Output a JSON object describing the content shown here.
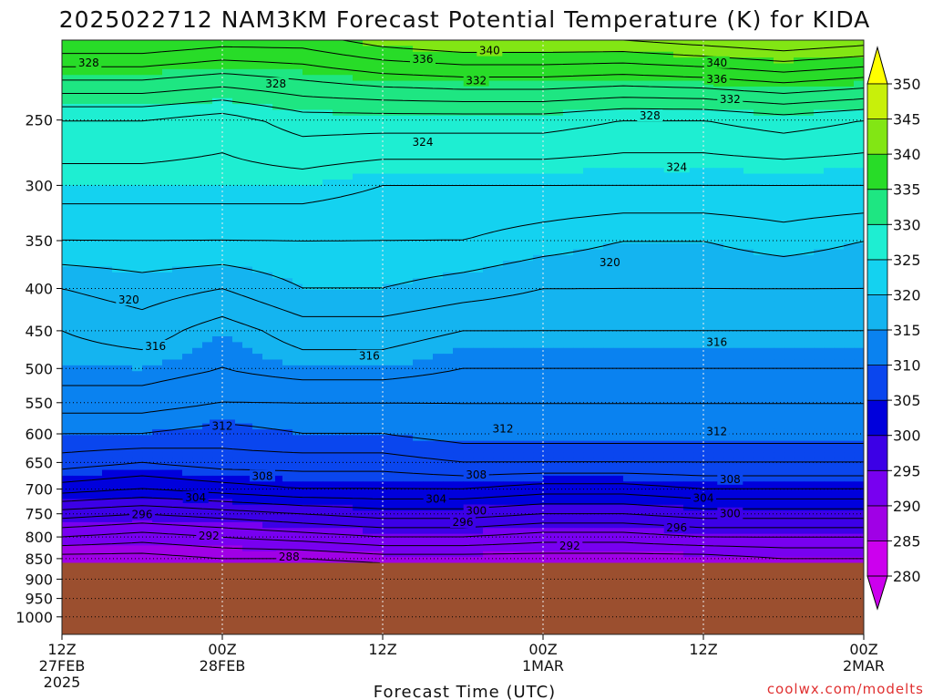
{
  "chart_data": {
    "type": "heatmap",
    "title": "2025022712 NAM3KM Forecast Potential Temperature (K) for KIDA",
    "xlabel": "Forecast Time (UTC)",
    "ylabel": "",
    "y_scale": "log-pressure (inverted)",
    "y_ticks": [
      250,
      300,
      350,
      400,
      450,
      500,
      550,
      600,
      650,
      700,
      750,
      800,
      850,
      900,
      950,
      1000
    ],
    "ylim": [
      1050,
      200
    ],
    "x_ticks": [
      {
        "hours": 0,
        "label": "12Z",
        "sub": "27FEB",
        "sub2": "2025"
      },
      {
        "hours": 12,
        "label": "00Z",
        "sub": "28FEB",
        "sub2": ""
      },
      {
        "hours": 24,
        "label": "12Z",
        "sub": "",
        "sub2": ""
      },
      {
        "hours": 36,
        "label": "00Z",
        "sub": "1MAR",
        "sub2": ""
      },
      {
        "hours": 48,
        "label": "12Z",
        "sub": "",
        "sub2": ""
      },
      {
        "hours": 60,
        "label": "00Z",
        "sub": "2MAR",
        "sub2": ""
      }
    ],
    "xlim": [
      0,
      60
    ],
    "grid": true,
    "ground_pressure_hpa": 860,
    "ground_color": "#9b4f2f",
    "colorbar": {
      "levels": [
        280,
        285,
        290,
        295,
        300,
        305,
        310,
        315,
        320,
        325,
        330,
        335,
        340,
        345,
        350
      ],
      "colors": [
        "#cc00ee",
        "#a000e6",
        "#7800f0",
        "#3c00e6",
        "#0000dc",
        "#0a46ee",
        "#0a82f0",
        "#14b4f0",
        "#14d2f0",
        "#1eeed2",
        "#1ee682",
        "#28dc28",
        "#82e614",
        "#c8f00a",
        "#ffff00"
      ]
    },
    "profile_pressure_hpa": [
      850,
      800,
      750,
      700,
      650,
      600,
      550,
      500,
      450,
      400,
      350,
      300,
      250,
      200
    ],
    "series": [
      {
        "hours": 0,
        "theta": [
          287,
          292,
          297,
          303,
          307,
          310,
          313,
          315,
          316,
          318,
          322,
          325,
          328,
          340
        ]
      },
      {
        "hours": 6,
        "theta": [
          287,
          291,
          296,
          302,
          306,
          310,
          313,
          315,
          317,
          319,
          322,
          325,
          328,
          340
        ]
      },
      {
        "hours": 12,
        "theta": [
          288,
          292,
          297,
          303,
          307,
          309,
          312,
          314,
          315,
          318,
          322,
          325,
          327,
          339
        ]
      },
      {
        "hours": 18,
        "theta": [
          288,
          293,
          298,
          304,
          307,
          310,
          312,
          315,
          317,
          320,
          322,
          325,
          329,
          339
        ]
      },
      {
        "hours": 24,
        "theta": [
          289,
          294,
          299,
          304,
          307,
          310,
          312,
          315,
          317,
          320,
          322,
          324,
          329,
          341
        ]
      },
      {
        "hours": 30,
        "theta": [
          289,
          294,
          299,
          304,
          308,
          311,
          312,
          314,
          316,
          319,
          322,
          324,
          329,
          342
        ]
      },
      {
        "hours": 36,
        "theta": [
          289,
          293,
          298,
          303,
          308,
          311,
          312,
          314,
          316,
          318,
          321,
          324,
          329,
          342
        ]
      },
      {
        "hours": 42,
        "theta": [
          289,
          293,
          298,
          303,
          308,
          311,
          312,
          314,
          316,
          318,
          320,
          324,
          328,
          342
        ]
      },
      {
        "hours": 48,
        "theta": [
          289,
          294,
          299,
          304,
          308,
          311,
          312,
          314,
          316,
          318,
          320,
          324,
          328,
          343
        ]
      },
      {
        "hours": 54,
        "theta": [
          290,
          294,
          299,
          304,
          308,
          311,
          312,
          314,
          316,
          318,
          321,
          324,
          329,
          344
        ]
      },
      {
        "hours": 60,
        "theta": [
          290,
          294,
          299,
          304,
          308,
          311,
          312,
          314,
          316,
          318,
          320,
          324,
          328,
          343
        ]
      }
    ],
    "contour_interval": 2,
    "contour_labels": [
      {
        "text": "328",
        "hours": 2,
        "p": 213
      },
      {
        "text": "328",
        "hours": 16,
        "p": 226
      },
      {
        "text": "336",
        "hours": 27,
        "p": 211
      },
      {
        "text": "340",
        "hours": 32,
        "p": 206
      },
      {
        "text": "332",
        "hours": 31,
        "p": 224
      },
      {
        "text": "340",
        "hours": 49,
        "p": 213
      },
      {
        "text": "336",
        "hours": 49,
        "p": 223
      },
      {
        "text": "332",
        "hours": 50,
        "p": 236
      },
      {
        "text": "328",
        "hours": 44,
        "p": 247
      },
      {
        "text": "324",
        "hours": 27,
        "p": 266
      },
      {
        "text": "324",
        "hours": 46,
        "p": 285
      },
      {
        "text": "320",
        "hours": 41,
        "p": 372
      },
      {
        "text": "320",
        "hours": 5,
        "p": 413
      },
      {
        "text": "316",
        "hours": 7,
        "p": 470
      },
      {
        "text": "316",
        "hours": 23,
        "p": 483
      },
      {
        "text": "316",
        "hours": 49,
        "p": 465
      },
      {
        "text": "312",
        "hours": 12,
        "p": 587
      },
      {
        "text": "312",
        "hours": 33,
        "p": 592
      },
      {
        "text": "312",
        "hours": 49,
        "p": 596
      },
      {
        "text": "308",
        "hours": 15,
        "p": 675
      },
      {
        "text": "308",
        "hours": 31,
        "p": 673
      },
      {
        "text": "308",
        "hours": 50,
        "p": 681
      },
      {
        "text": "304",
        "hours": 10,
        "p": 717
      },
      {
        "text": "304",
        "hours": 28,
        "p": 720
      },
      {
        "text": "304",
        "hours": 48,
        "p": 718
      },
      {
        "text": "300",
        "hours": 31,
        "p": 744
      },
      {
        "text": "300",
        "hours": 50,
        "p": 750
      },
      {
        "text": "296",
        "hours": 6,
        "p": 752
      },
      {
        "text": "296",
        "hours": 30,
        "p": 768
      },
      {
        "text": "296",
        "hours": 46,
        "p": 780
      },
      {
        "text": "292",
        "hours": 11,
        "p": 798
      },
      {
        "text": "292",
        "hours": 38,
        "p": 820
      },
      {
        "text": "288",
        "hours": 17,
        "p": 846
      }
    ]
  },
  "credit": "coolwx.com/modelts"
}
